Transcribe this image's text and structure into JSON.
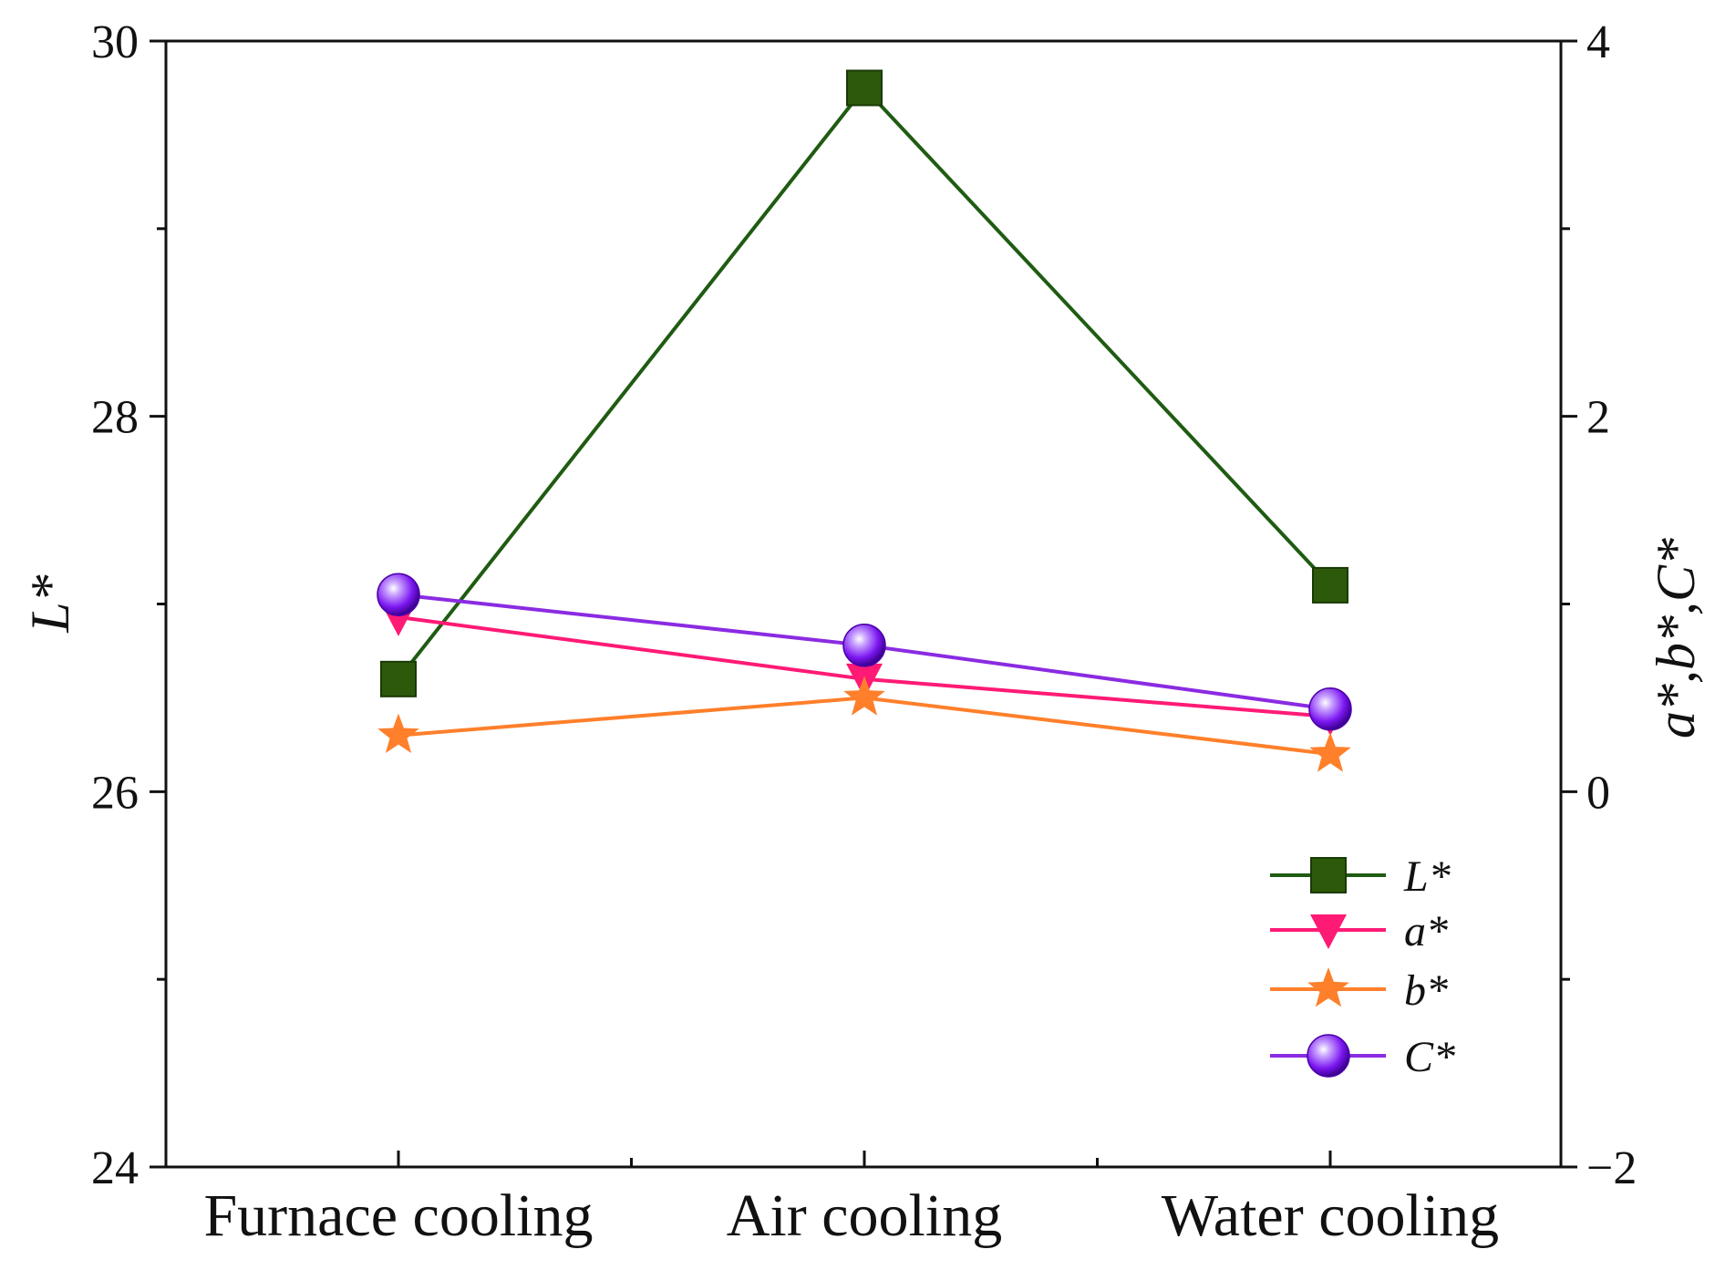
{
  "chart_data": {
    "type": "line",
    "categories": [
      "Furnace cooling",
      "Air cooling",
      "Water cooling"
    ],
    "left_axis": {
      "label": "L*",
      "ylim": [
        24,
        30
      ],
      "ticks": [
        24,
        26,
        28,
        30
      ],
      "minor_ticks": [
        25,
        27,
        29
      ]
    },
    "right_axis": {
      "label": "a*,b*,C*",
      "ylim": [
        -2,
        4
      ],
      "ticks": [
        "−2",
        "0",
        "2",
        "4"
      ],
      "tick_values": [
        -2,
        0,
        2,
        4
      ],
      "minor_ticks": [
        -1,
        1,
        3
      ]
    },
    "series": [
      {
        "name": "L*",
        "axis": "left",
        "values": [
          26.6,
          29.75,
          27.1
        ],
        "color": "#2d5a0a",
        "line_color": "#1f5c12",
        "marker": "square"
      },
      {
        "name": "a*",
        "axis": "right",
        "values": [
          0.93,
          0.6,
          0.4
        ],
        "color": "#ff1a75",
        "line_color": "#ff1a75",
        "marker": "triangle-down"
      },
      {
        "name": "b*",
        "axis": "right",
        "values": [
          0.3,
          0.5,
          0.2
        ],
        "color": "#ff7f2a",
        "line_color": "#ff7f2a",
        "marker": "star"
      },
      {
        "name": "C*",
        "axis": "right",
        "values": [
          1.05,
          0.78,
          0.44
        ],
        "color": "#8a2be2",
        "line_color": "#8a2be2",
        "marker": "sphere"
      }
    ],
    "legend": {
      "position": "bottom-right"
    },
    "grid": false
  }
}
